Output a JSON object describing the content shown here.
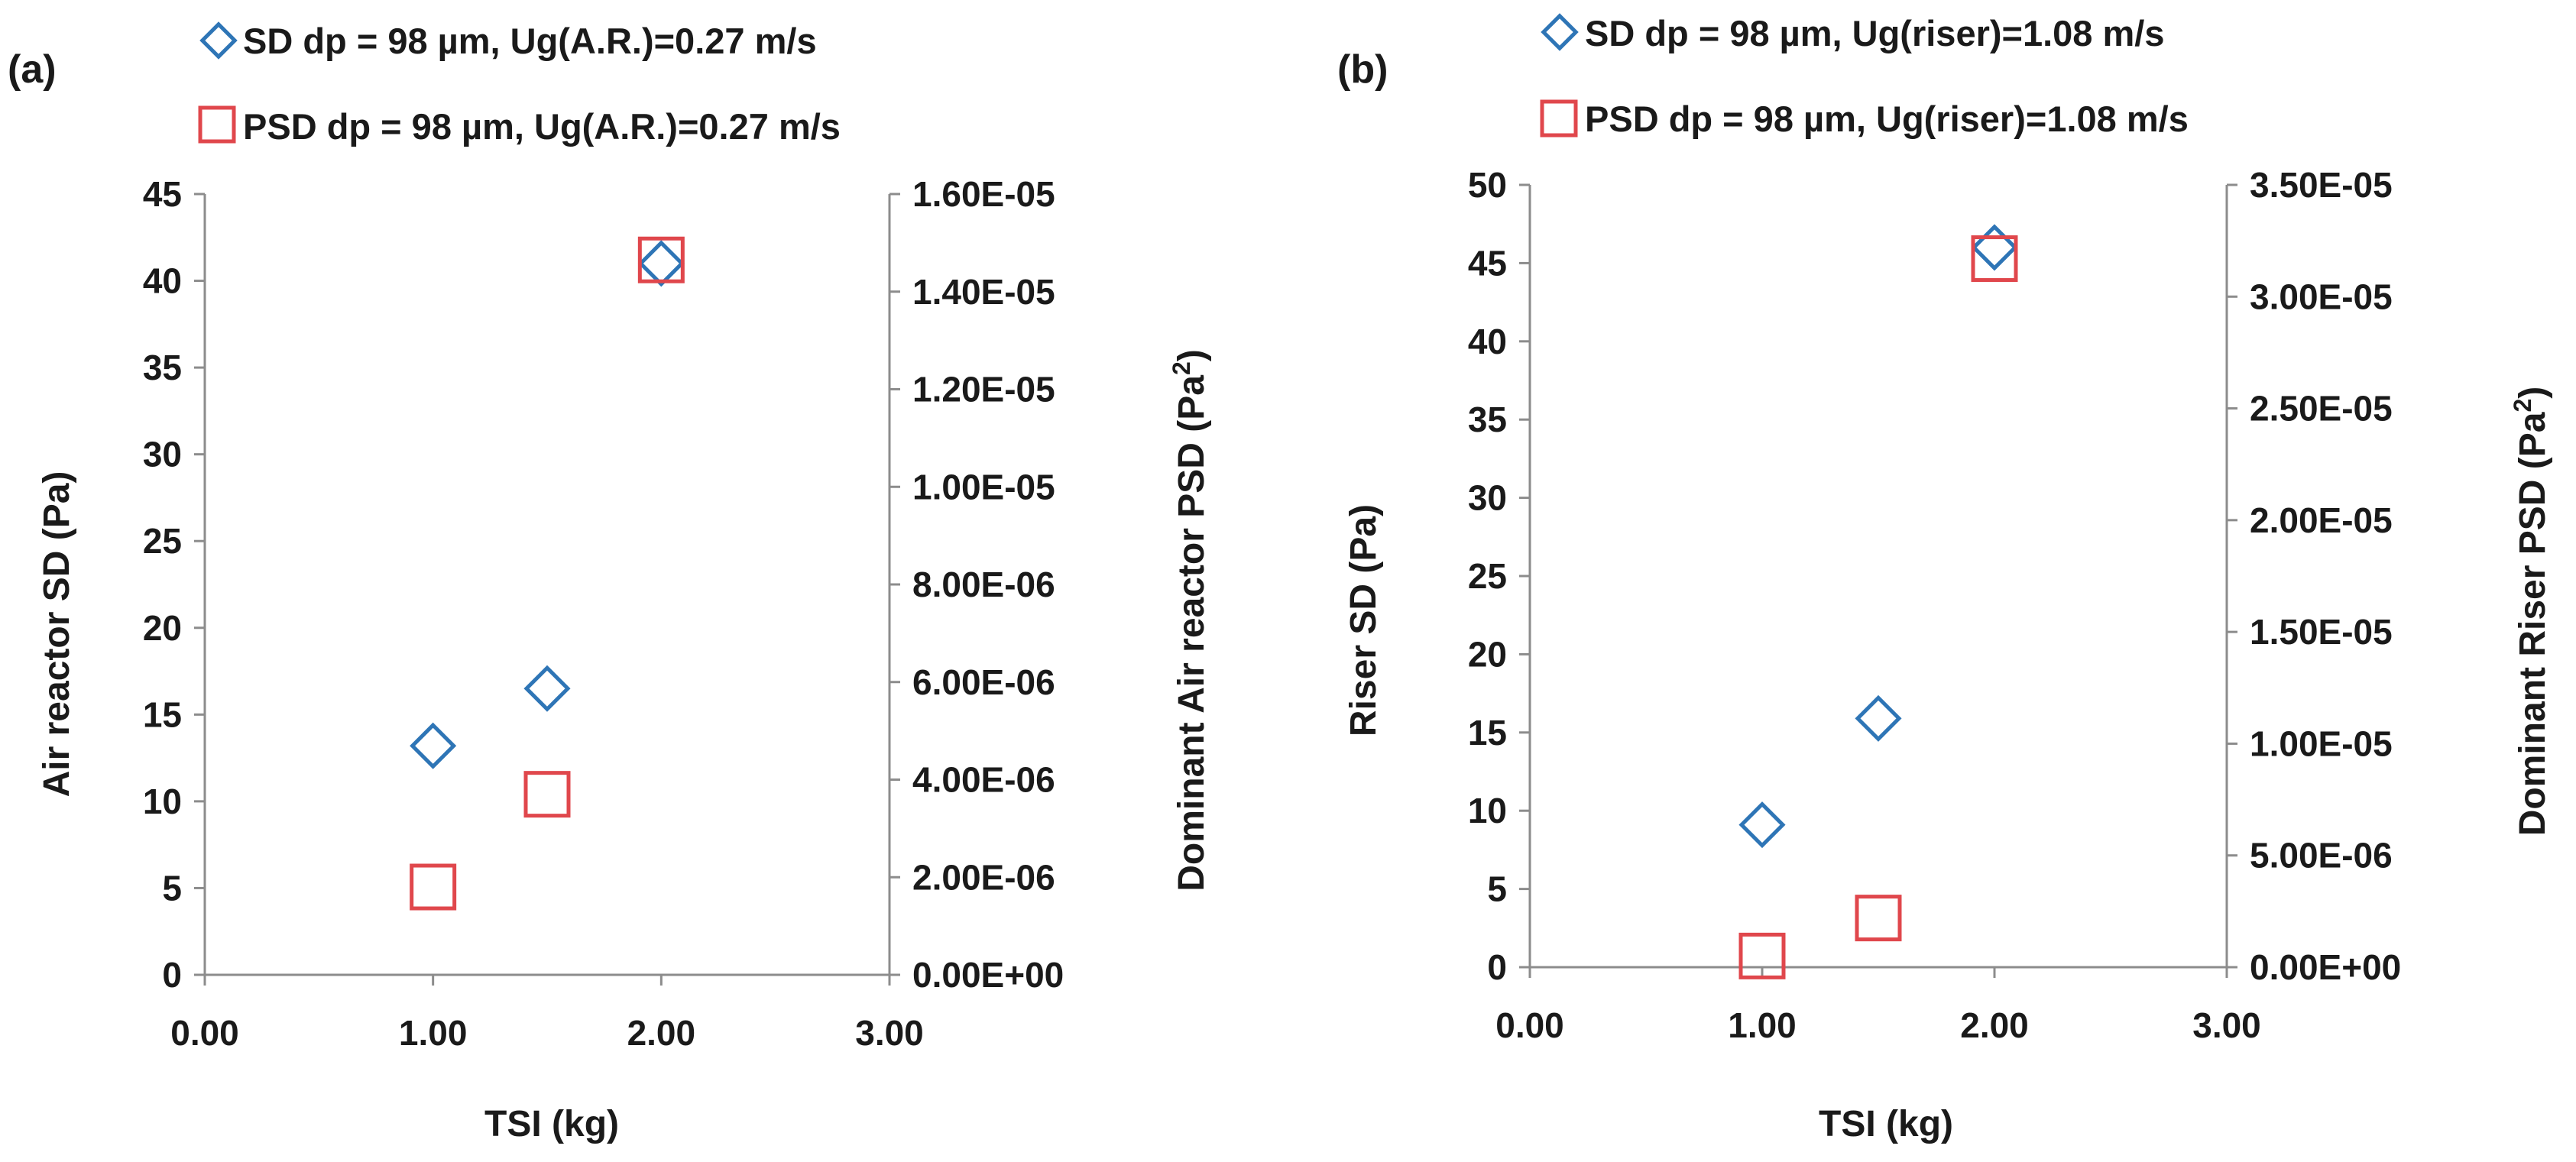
{
  "chart_data": [
    {
      "type": "scatter",
      "panel_label": "(a)",
      "xlabel": "TSI (kg)",
      "ylabel": "Air reactor SD (Pa)",
      "y2label_prefix": "Dominant Air reactor PSD (Pa",
      "y2label_sup": "2",
      "y2label_suffix": ")",
      "xlim": [
        0,
        3
      ],
      "ylim": [
        0,
        45
      ],
      "y2lim": [
        0,
        1.6e-05
      ],
      "x_ticks": [
        "0.00",
        "1.00",
        "2.00",
        "3.00"
      ],
      "y_ticks": [
        "0",
        "5",
        "10",
        "15",
        "20",
        "25",
        "30",
        "35",
        "40",
        "45"
      ],
      "y2_ticks": [
        "0.00E+00",
        "2.00E-06",
        "4.00E-06",
        "6.00E-06",
        "8.00E-06",
        "1.00E-05",
        "1.20E-05",
        "1.40E-05",
        "1.60E-05"
      ],
      "series": [
        {
          "name": "SD dp = 98 µm, Ug(A.R.)=0.27 m/s",
          "axis": "left",
          "marker": "diamond",
          "color": "#2E75B6",
          "x": [
            1.0,
            1.5,
            2.0
          ],
          "y": [
            13.2,
            16.5,
            41.0
          ]
        },
        {
          "name": "PSD dp = 98 µm, Ug(A.R.)=0.27 m/s",
          "axis": "right",
          "marker": "square",
          "color": "#E0474C",
          "x": [
            1.0,
            1.5,
            2.0
          ],
          "y": [
            1.8e-06,
            3.7e-06,
            1.465e-05
          ]
        }
      ]
    },
    {
      "type": "scatter",
      "panel_label": "(b)",
      "xlabel": "TSI (kg)",
      "ylabel": "Riser SD (Pa)",
      "y2label_prefix": "Dominant Riser PSD (Pa",
      "y2label_sup": "2",
      "y2label_suffix": ")",
      "xlim": [
        0,
        3
      ],
      "ylim": [
        0,
        50
      ],
      "y2lim": [
        0,
        3.5e-05
      ],
      "x_ticks": [
        "0.00",
        "1.00",
        "2.00",
        "3.00"
      ],
      "y_ticks": [
        "0",
        "5",
        "10",
        "15",
        "20",
        "25",
        "30",
        "35",
        "40",
        "45",
        "50"
      ],
      "y2_ticks": [
        "0.00E+00",
        "5.00E-06",
        "1.00E-05",
        "1.50E-05",
        "2.00E-05",
        "2.50E-05",
        "3.00E-05",
        "3.50E-05"
      ],
      "series": [
        {
          "name": "SD dp = 98 µm, Ug(riser)=1.08 m/s",
          "axis": "left",
          "marker": "diamond",
          "color": "#2E75B6",
          "x": [
            1.0,
            1.5,
            2.0
          ],
          "y": [
            9.1,
            15.9,
            46.0
          ]
        },
        {
          "name": "PSD dp = 98 µm, Ug(riser)=1.08 m/s",
          "axis": "right",
          "marker": "square",
          "color": "#E0474C",
          "x": [
            1.0,
            1.5,
            2.0
          ],
          "y": [
            5e-07,
            2.2e-06,
            3.17e-05
          ]
        }
      ]
    }
  ]
}
